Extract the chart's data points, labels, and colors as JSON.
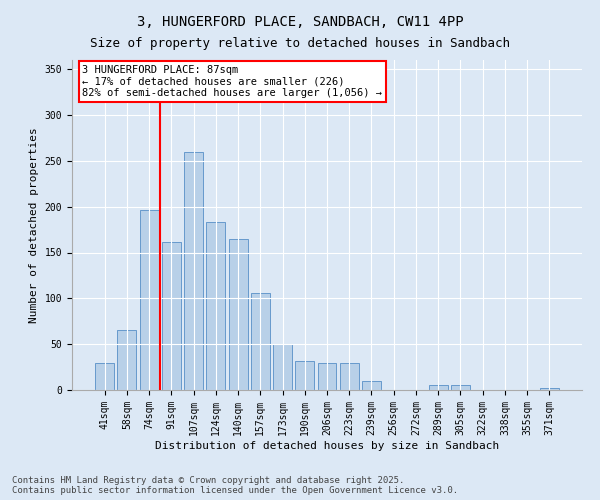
{
  "title_line1": "3, HUNGERFORD PLACE, SANDBACH, CW11 4PP",
  "title_line2": "Size of property relative to detached houses in Sandbach",
  "xlabel": "Distribution of detached houses by size in Sandbach",
  "ylabel": "Number of detached properties",
  "categories": [
    "41sqm",
    "58sqm",
    "74sqm",
    "91sqm",
    "107sqm",
    "124sqm",
    "140sqm",
    "157sqm",
    "173sqm",
    "190sqm",
    "206sqm",
    "223sqm",
    "239sqm",
    "256sqm",
    "272sqm",
    "289sqm",
    "305sqm",
    "322sqm",
    "338sqm",
    "355sqm",
    "371sqm"
  ],
  "values": [
    29,
    66,
    196,
    161,
    260,
    183,
    165,
    106,
    50,
    32,
    30,
    29,
    10,
    0,
    0,
    5,
    6,
    0,
    0,
    0,
    2
  ],
  "bar_color": "#b8d0e8",
  "bar_edge_color": "#6699cc",
  "ref_line_index": 2.5,
  "ref_line_color": "red",
  "annotation_text": "3 HUNGERFORD PLACE: 87sqm\n← 17% of detached houses are smaller (226)\n82% of semi-detached houses are larger (1,056) →",
  "annotation_box_color": "white",
  "annotation_box_edge_color": "red",
  "ylim": [
    0,
    360
  ],
  "yticks": [
    0,
    50,
    100,
    150,
    200,
    250,
    300,
    350
  ],
  "background_color": "#dce8f5",
  "plot_bg_color": "#dce8f5",
  "footer_line1": "Contains HM Land Registry data © Crown copyright and database right 2025.",
  "footer_line2": "Contains public sector information licensed under the Open Government Licence v3.0.",
  "title_fontsize": 10,
  "subtitle_fontsize": 9,
  "axis_label_fontsize": 8,
  "tick_fontsize": 7,
  "annotation_fontsize": 7.5,
  "footer_fontsize": 6.5
}
